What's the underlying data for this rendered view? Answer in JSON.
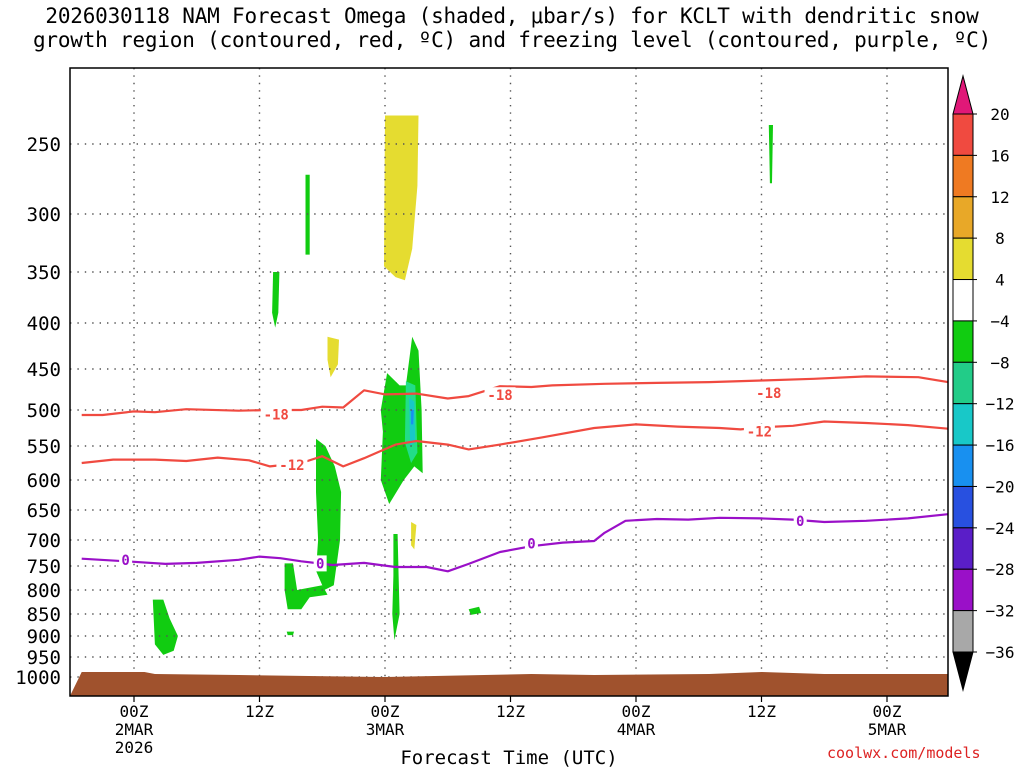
{
  "title": {
    "line1": "2026030118 NAM Forecast Omega (shaded, μbar/s) for KCLT with dendritic snow",
    "line2": "growth region (contoured, red, ºC) and freezing level (contoured, purple, ºC)"
  },
  "watermark": "coolwx.com/models",
  "colors": {
    "snow_contour": "#f04a40",
    "freezing_contour": "#9a10c8",
    "ground": "#a0522d",
    "green": "#11cc11",
    "light_green": "#22dd88",
    "cyan": "#18c8c8",
    "blue": "#1890f0",
    "yellow": "#e5dc30",
    "grid": "#555555"
  },
  "chart_data": {
    "type": "heatmap",
    "xlabel": "Forecast Time (UTC)",
    "ylabel": "",
    "xlim_hours": [
      -5,
      79
    ],
    "y_axis": "pressure (hPa), reversed, log-like spacing",
    "ylim": [
      1030,
      210
    ],
    "x_ticks": [
      {
        "hour": 0,
        "line1": "00Z",
        "line2": "2MAR",
        "line3": "2026"
      },
      {
        "hour": 12,
        "line1": "12Z",
        "line2": "",
        "line3": ""
      },
      {
        "hour": 24,
        "line1": "00Z",
        "line2": "3MAR",
        "line3": ""
      },
      {
        "hour": 36,
        "line1": "12Z",
        "line2": "",
        "line3": ""
      },
      {
        "hour": 48,
        "line1": "00Z",
        "line2": "4MAR",
        "line3": ""
      },
      {
        "hour": 60,
        "line1": "12Z",
        "line2": "",
        "line3": ""
      },
      {
        "hour": 72,
        "line1": "00Z",
        "line2": "5MAR",
        "line3": ""
      }
    ],
    "y_ticks": [
      250,
      300,
      350,
      400,
      450,
      500,
      550,
      600,
      650,
      700,
      750,
      800,
      850,
      900,
      950,
      1000
    ],
    "grid": true,
    "colorbar": {
      "labels": [
        "20",
        "16",
        "12",
        "8",
        "4",
        "−4",
        "−8",
        "−12",
        "−16",
        "−20",
        "−24",
        "−28",
        "−32",
        "−36"
      ],
      "colors": [
        "#f04a40",
        "#ef7a22",
        "#e8a828",
        "#e5dc30",
        "#ffffff",
        "#11cc11",
        "#22cc88",
        "#18c8c8",
        "#1890f0",
        "#2850e0",
        "#5a1ec8",
        "#9a10c8",
        "#a8a8a8"
      ],
      "top_arrow_color": "#e01878",
      "bottom_arrow_color": "#000000"
    },
    "omega_regions": [
      {
        "color": "green",
        "value": "-4 to -8",
        "points": [
          [
            1.8,
            820
          ],
          [
            2.8,
            820
          ],
          [
            3.4,
            860
          ],
          [
            4.2,
            900
          ],
          [
            3.8,
            935
          ],
          [
            2.8,
            945
          ],
          [
            2.0,
            920
          ],
          [
            1.9,
            870
          ]
        ]
      },
      {
        "color": "green",
        "value": "-4 to -8",
        "points": [
          [
            14.4,
            745
          ],
          [
            15.2,
            745
          ],
          [
            15.6,
            800
          ],
          [
            18.0,
            790
          ],
          [
            18.5,
            810
          ],
          [
            16.8,
            815
          ],
          [
            16.0,
            840
          ],
          [
            14.7,
            840
          ],
          [
            14.4,
            800
          ]
        ]
      },
      {
        "color": "green",
        "value": "-4 to -8",
        "points": [
          [
            17.4,
            540
          ],
          [
            18.3,
            550
          ],
          [
            19.2,
            580
          ],
          [
            19.8,
            620
          ],
          [
            19.7,
            700
          ],
          [
            19.1,
            790
          ],
          [
            18.2,
            800
          ],
          [
            17.4,
            760
          ],
          [
            17.6,
            700
          ],
          [
            17.4,
            620
          ]
        ]
      },
      {
        "color": "green",
        "value": "-4 to -8",
        "points": [
          [
            14.6,
            890
          ],
          [
            15.3,
            890
          ],
          [
            15.2,
            898
          ],
          [
            14.7,
            898
          ]
        ]
      },
      {
        "color": "green",
        "value": "-4 to -8",
        "points": [
          [
            16.4,
            272
          ],
          [
            16.8,
            272
          ],
          [
            16.8,
            335
          ],
          [
            16.4,
            335
          ]
        ]
      },
      {
        "color": "green",
        "value": "-4 to -8",
        "points": [
          [
            13.3,
            350
          ],
          [
            13.9,
            350
          ],
          [
            13.8,
            390
          ],
          [
            13.5,
            405
          ],
          [
            13.2,
            390
          ]
        ]
      },
      {
        "color": "green",
        "value": "-4 to -8",
        "points": [
          [
            24.2,
            455
          ],
          [
            25.4,
            470
          ],
          [
            26.0,
            470
          ],
          [
            26.6,
            415
          ],
          [
            27.2,
            430
          ],
          [
            27.5,
            500
          ],
          [
            27.6,
            590
          ],
          [
            26.8,
            580
          ],
          [
            25.8,
            600
          ],
          [
            24.4,
            640
          ],
          [
            23.6,
            600
          ],
          [
            23.8,
            530
          ],
          [
            23.6,
            500
          ]
        ]
      },
      {
        "color": "green",
        "value": "-4 to -8",
        "points": [
          [
            24.8,
            690
          ],
          [
            25.2,
            690
          ],
          [
            25.3,
            770
          ],
          [
            25.4,
            850
          ],
          [
            24.9,
            910
          ],
          [
            24.7,
            850
          ],
          [
            24.8,
            770
          ]
        ]
      },
      {
        "color": "green",
        "value": "-4 to -8",
        "points": [
          [
            32.0,
            840
          ],
          [
            33.0,
            835
          ],
          [
            33.2,
            848
          ],
          [
            32.2,
            852
          ]
        ]
      },
      {
        "color": "green",
        "value": "-4 to -8",
        "points": [
          [
            60.7,
            240
          ],
          [
            61.1,
            240
          ],
          [
            61.0,
            278
          ],
          [
            60.8,
            278
          ]
        ]
      },
      {
        "color": "light_green",
        "value": "-8 to -12",
        "points": [
          [
            26.0,
            465
          ],
          [
            26.9,
            470
          ],
          [
            27.1,
            560
          ],
          [
            26.5,
            575
          ],
          [
            25.9,
            545
          ]
        ]
      },
      {
        "color": "cyan",
        "value": "-12 to -16",
        "points": [
          [
            26.3,
            485
          ],
          [
            26.8,
            490
          ],
          [
            26.9,
            545
          ],
          [
            26.4,
            550
          ]
        ]
      },
      {
        "color": "blue",
        "value": "-16 to -20",
        "points": [
          [
            26.5,
            500
          ],
          [
            26.75,
            500
          ],
          [
            26.7,
            520
          ],
          [
            26.5,
            520
          ]
        ]
      },
      {
        "color": "yellow",
        "value": "4 to 8",
        "points": [
          [
            24.0,
            235
          ],
          [
            27.2,
            235
          ],
          [
            27.1,
            280
          ],
          [
            26.6,
            330
          ],
          [
            25.9,
            358
          ],
          [
            25.0,
            355
          ],
          [
            23.9,
            345
          ]
        ]
      },
      {
        "color": "yellow",
        "value": "4 to 8",
        "points": [
          [
            18.5,
            415
          ],
          [
            19.6,
            418
          ],
          [
            19.5,
            445
          ],
          [
            18.8,
            460
          ],
          [
            18.5,
            440
          ]
        ]
      },
      {
        "color": "yellow",
        "value": "4 to 8",
        "points": [
          [
            26.5,
            670
          ],
          [
            27.0,
            675
          ],
          [
            26.8,
            718
          ],
          [
            26.5,
            710
          ]
        ]
      }
    ],
    "contours": [
      {
        "name": "-18",
        "color": "snow_contour",
        "label_positions": [
          [
            13.6,
            506
          ],
          [
            35.0,
            482
          ],
          [
            60.7,
            479
          ]
        ],
        "points": [
          [
            -5,
            507
          ],
          [
            -3,
            507
          ],
          [
            0,
            502
          ],
          [
            2,
            503
          ],
          [
            5,
            499
          ],
          [
            10,
            501
          ],
          [
            13,
            500
          ],
          [
            16,
            500
          ],
          [
            18,
            496
          ],
          [
            20,
            497
          ],
          [
            22,
            476
          ],
          [
            24,
            481
          ],
          [
            27,
            480
          ],
          [
            30,
            486
          ],
          [
            32,
            483
          ],
          [
            35,
            471
          ],
          [
            38,
            472
          ],
          [
            40,
            470
          ],
          [
            45,
            468
          ],
          [
            50,
            467
          ],
          [
            55,
            466
          ],
          [
            60,
            464
          ],
          [
            65,
            462
          ],
          [
            70,
            459
          ],
          [
            75,
            460
          ],
          [
            79,
            466
          ]
        ]
      },
      {
        "name": "-12",
        "color": "snow_contour",
        "label_positions": [
          [
            15.1,
            578
          ],
          [
            59.8,
            530
          ]
        ],
        "points": [
          [
            -5,
            575
          ],
          [
            -2,
            570
          ],
          [
            2,
            570
          ],
          [
            5,
            572
          ],
          [
            8,
            567
          ],
          [
            11,
            571
          ],
          [
            13,
            580
          ],
          [
            16,
            575
          ],
          [
            18,
            565
          ],
          [
            20,
            580
          ],
          [
            22,
            568
          ],
          [
            25,
            548
          ],
          [
            27,
            543
          ],
          [
            30,
            548
          ],
          [
            32,
            555
          ],
          [
            35,
            548
          ],
          [
            39,
            538
          ],
          [
            44,
            525
          ],
          [
            48,
            520
          ],
          [
            52,
            523
          ],
          [
            56,
            525
          ],
          [
            58,
            527
          ],
          [
            60,
            524
          ],
          [
            63,
            522
          ],
          [
            66,
            516
          ],
          [
            70,
            518
          ],
          [
            74,
            521
          ],
          [
            79,
            526
          ]
        ]
      },
      {
        "name": "0",
        "color": "freezing_contour",
        "label_positions": [
          [
            -0.8,
            738
          ],
          [
            17.8,
            745
          ],
          [
            38.0,
            707
          ],
          [
            63.7,
            668
          ]
        ],
        "points": [
          [
            -5,
            736
          ],
          [
            0,
            742
          ],
          [
            3,
            746
          ],
          [
            6,
            744
          ],
          [
            10,
            738
          ],
          [
            12,
            732
          ],
          [
            14,
            735
          ],
          [
            16,
            741
          ],
          [
            19,
            748
          ],
          [
            22,
            744
          ],
          [
            25,
            752
          ],
          [
            28,
            752
          ],
          [
            30,
            761
          ],
          [
            32,
            746
          ],
          [
            35,
            723
          ],
          [
            38,
            712
          ],
          [
            41,
            705
          ],
          [
            44,
            702
          ],
          [
            45,
            688
          ],
          [
            47,
            668
          ],
          [
            50,
            665
          ],
          [
            53,
            666
          ],
          [
            56,
            663
          ],
          [
            60,
            664
          ],
          [
            63,
            666
          ],
          [
            66,
            670
          ],
          [
            70,
            668
          ],
          [
            74,
            664
          ],
          [
            79,
            657
          ]
        ]
      }
    ]
  }
}
